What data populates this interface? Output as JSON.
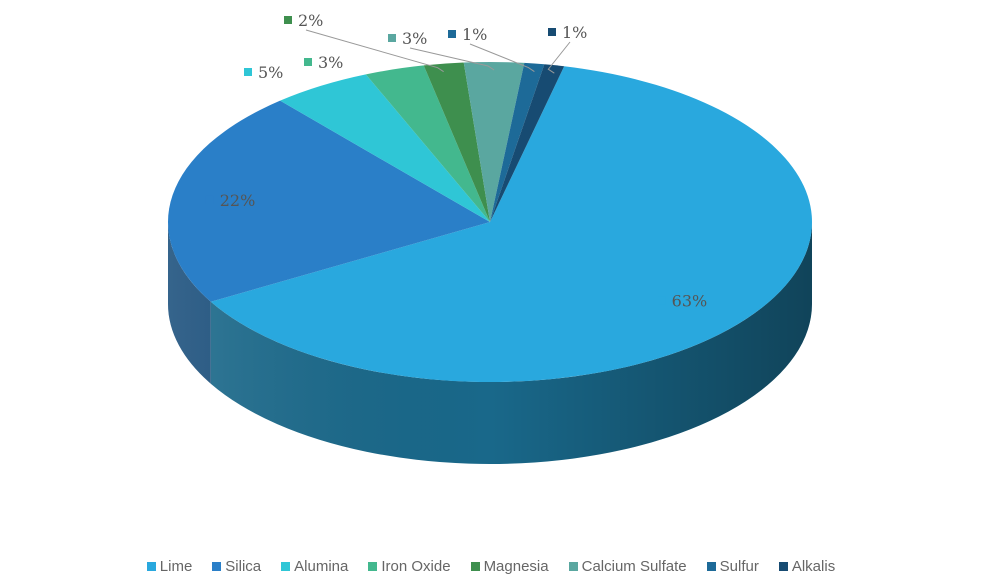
{
  "chart_data": {
    "type": "pie",
    "style": "3d",
    "categories": [
      "Lime",
      "Silica",
      "Alumina",
      "Iron Oxide",
      "Magnesia",
      "Calcium Sulfate",
      "Sulfur",
      "Alkalis"
    ],
    "values": [
      63,
      22,
      5,
      3,
      2,
      3,
      1,
      1
    ],
    "value_labels": [
      "63%",
      "22%",
      "5%",
      "3%",
      "2%",
      "3%",
      "1%",
      "1%"
    ],
    "colors": [
      "#29a8de",
      "#2a7fc8",
      "#2fc6d6",
      "#43b88e",
      "#3e8f4e",
      "#5aa7a0",
      "#1d6a98",
      "#174b72"
    ],
    "legend_position": "bottom"
  }
}
